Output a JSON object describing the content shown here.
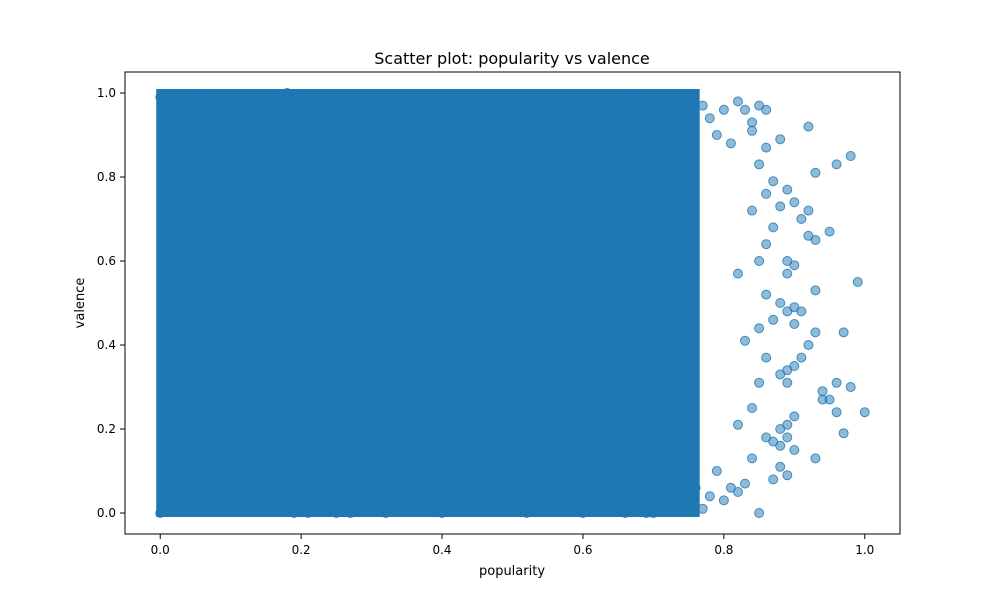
{
  "chart_data": {
    "type": "scatter",
    "title": "Scatter plot: popularity vs valence",
    "xlabel": "popularity",
    "ylabel": "valence",
    "xlim": [
      -0.05,
      1.05
    ],
    "ylim": [
      -0.05,
      1.05
    ],
    "xticks": [
      0.0,
      0.2,
      0.4,
      0.6,
      0.8,
      1.0
    ],
    "yticks": [
      0.0,
      0.2,
      0.4,
      0.6,
      0.8,
      1.0
    ],
    "xtick_labels": [
      "0.0",
      "0.2",
      "0.4",
      "0.6",
      "0.8",
      "1.0"
    ],
    "ytick_labels": [
      "0.0",
      "0.2",
      "0.4",
      "0.6",
      "0.8",
      "1.0"
    ],
    "grid": false,
    "marker_color": "#1f77b4",
    "marker_alpha": 0.5,
    "dense_region": {
      "x_range": [
        0.0,
        0.76
      ],
      "y_range": [
        0.0,
        1.0
      ],
      "description_value": "approximately uniform dense coverage"
    },
    "series": [
      {
        "points": [
          [
            0.77,
            0.97
          ],
          [
            0.78,
            0.94
          ],
          [
            0.79,
            0.9
          ],
          [
            0.8,
            0.96
          ],
          [
            0.81,
            0.88
          ],
          [
            0.82,
            0.98
          ],
          [
            0.83,
            0.96
          ],
          [
            0.84,
            0.93
          ],
          [
            0.85,
            0.97
          ],
          [
            0.86,
            0.96
          ],
          [
            0.84,
            0.91
          ],
          [
            0.86,
            0.87
          ],
          [
            0.88,
            0.89
          ],
          [
            0.92,
            0.92
          ],
          [
            0.96,
            0.83
          ],
          [
            0.98,
            0.85
          ],
          [
            0.93,
            0.81
          ],
          [
            0.89,
            0.77
          ],
          [
            0.88,
            0.73
          ],
          [
            0.9,
            0.74
          ],
          [
            0.91,
            0.7
          ],
          [
            0.92,
            0.72
          ],
          [
            0.93,
            0.65
          ],
          [
            0.95,
            0.67
          ],
          [
            0.92,
            0.66
          ],
          [
            0.89,
            0.6
          ],
          [
            0.9,
            0.59
          ],
          [
            0.89,
            0.57
          ],
          [
            0.99,
            0.55
          ],
          [
            0.93,
            0.53
          ],
          [
            0.88,
            0.5
          ],
          [
            0.89,
            0.48
          ],
          [
            0.9,
            0.49
          ],
          [
            0.91,
            0.48
          ],
          [
            0.87,
            0.46
          ],
          [
            0.9,
            0.45
          ],
          [
            0.93,
            0.43
          ],
          [
            0.97,
            0.43
          ],
          [
            0.92,
            0.4
          ],
          [
            0.91,
            0.37
          ],
          [
            0.9,
            0.35
          ],
          [
            0.89,
            0.34
          ],
          [
            0.88,
            0.33
          ],
          [
            0.89,
            0.31
          ],
          [
            0.94,
            0.29
          ],
          [
            0.96,
            0.31
          ],
          [
            0.98,
            0.3
          ],
          [
            0.94,
            0.27
          ],
          [
            0.95,
            0.27
          ],
          [
            0.96,
            0.24
          ],
          [
            1.0,
            0.24
          ],
          [
            0.97,
            0.19
          ],
          [
            0.9,
            0.23
          ],
          [
            0.89,
            0.21
          ],
          [
            0.88,
            0.2
          ],
          [
            0.89,
            0.18
          ],
          [
            0.87,
            0.17
          ],
          [
            0.88,
            0.16
          ],
          [
            0.9,
            0.15
          ],
          [
            0.93,
            0.13
          ],
          [
            0.88,
            0.11
          ],
          [
            0.89,
            0.09
          ],
          [
            0.87,
            0.08
          ],
          [
            0.85,
            0.0
          ],
          [
            0.82,
            0.05
          ],
          [
            0.83,
            0.07
          ],
          [
            0.8,
            0.03
          ],
          [
            0.81,
            0.06
          ],
          [
            0.78,
            0.04
          ],
          [
            0.77,
            0.01
          ],
          [
            0.76,
            0.06
          ],
          [
            0.79,
            0.1
          ],
          [
            0.84,
            0.13
          ],
          [
            0.86,
            0.18
          ],
          [
            0.82,
            0.21
          ],
          [
            0.84,
            0.25
          ],
          [
            0.85,
            0.31
          ],
          [
            0.86,
            0.37
          ],
          [
            0.83,
            0.41
          ],
          [
            0.85,
            0.44
          ],
          [
            0.86,
            0.52
          ],
          [
            0.82,
            0.57
          ],
          [
            0.85,
            0.6
          ],
          [
            0.86,
            0.64
          ],
          [
            0.87,
            0.68
          ],
          [
            0.84,
            0.72
          ],
          [
            0.86,
            0.76
          ],
          [
            0.87,
            0.79
          ],
          [
            0.85,
            0.83
          ],
          [
            0.0,
            0.99
          ],
          [
            0.0,
            0.0
          ],
          [
            0.05,
            0.99
          ],
          [
            0.18,
            1.0
          ],
          [
            0.32,
            0.0
          ],
          [
            0.4,
            0.0
          ],
          [
            0.52,
            0.0
          ],
          [
            0.6,
            0.0
          ],
          [
            0.66,
            0.0
          ],
          [
            0.69,
            0.0
          ],
          [
            0.7,
            0.0
          ],
          [
            0.67,
            0.99
          ],
          [
            0.19,
            0.0
          ],
          [
            0.21,
            0.0
          ],
          [
            0.25,
            0.0
          ],
          [
            0.27,
            0.0
          ]
        ]
      }
    ]
  }
}
